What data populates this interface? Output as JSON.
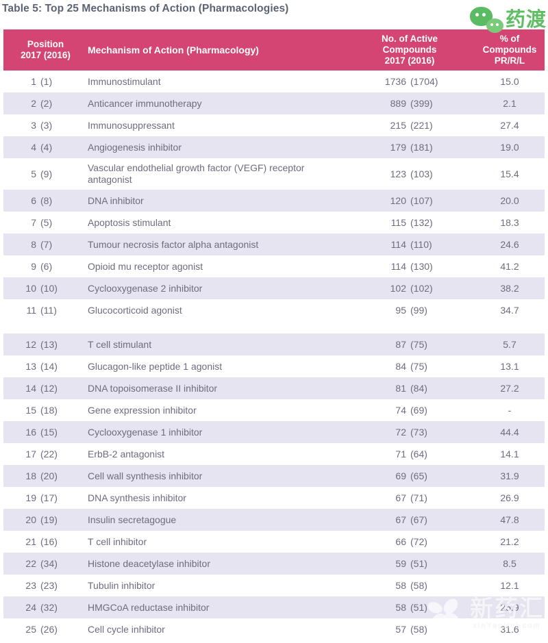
{
  "title": "Table 5: Top 25 Mechanisms of Action (Pharmacologies)",
  "logo": {
    "brand": "药渡",
    "icon": "wechat-icon"
  },
  "watermark": {
    "brand": "新药汇",
    "domain": "xinYaoHui.com",
    "icon": "clover-icon"
  },
  "colors": {
    "header_bg": "#d44573",
    "alt_row_bg": "#e7e4f1",
    "title_text": "#5c6374",
    "body_text": "#6f6b7e",
    "logo_green": "#5fbe63"
  },
  "table": {
    "columns": {
      "position": {
        "lines": [
          "Position",
          "2017 (2016)"
        ]
      },
      "mechanism": {
        "lines": [
          "Mechanism of Action (Pharmacology)"
        ]
      },
      "compounds": {
        "lines": [
          "No. of Active",
          "Compounds",
          "2017 (2016)"
        ]
      },
      "percent": {
        "lines": [
          "% of",
          "Compounds",
          "PR/R/L"
        ]
      }
    },
    "rows": [
      {
        "pos": "1",
        "pos_prev": "(1)",
        "mechanism": "Immunostimulant",
        "count": "1736",
        "count_prev": "(1704)",
        "pct": "15.0"
      },
      {
        "pos": "2",
        "pos_prev": "(2)",
        "mechanism": "Anticancer immunotherapy",
        "count": "889",
        "count_prev": "(399)",
        "pct": "2.1"
      },
      {
        "pos": "3",
        "pos_prev": "(3)",
        "mechanism": "Immunosuppressant",
        "count": "215",
        "count_prev": "(221)",
        "pct": "27.4"
      },
      {
        "pos": "4",
        "pos_prev": "(4)",
        "mechanism": "Angiogenesis inhibitor",
        "count": "179",
        "count_prev": "(181)",
        "pct": "19.0"
      },
      {
        "pos": "5",
        "pos_prev": "(9)",
        "mechanism": "Vascular endothelial growth factor (VEGF) receptor antagonist",
        "count": "123",
        "count_prev": "(103)",
        "pct": "15.4",
        "two_line": true
      },
      {
        "pos": "6",
        "pos_prev": "(8)",
        "mechanism": "DNA inhibitor",
        "count": "120",
        "count_prev": "(107)",
        "pct": "20.0"
      },
      {
        "pos": "7",
        "pos_prev": "(5)",
        "mechanism": "Apoptosis stimulant",
        "count": "115",
        "count_prev": "(132)",
        "pct": "18.3"
      },
      {
        "pos": "8",
        "pos_prev": "(7)",
        "mechanism": "Tumour necrosis factor alpha antagonist",
        "count": "114",
        "count_prev": "(110)",
        "pct": "24.6"
      },
      {
        "pos": "9",
        "pos_prev": "(6)",
        "mechanism": "Opioid mu receptor agonist",
        "count": "114",
        "count_prev": "(130)",
        "pct": "41.2"
      },
      {
        "pos": "10",
        "pos_prev": "(10)",
        "mechanism": "Cyclooxygenase 2 inhibitor",
        "count": "102",
        "count_prev": "(102)",
        "pct": "38.2"
      },
      {
        "pos": "11",
        "pos_prev": "(11)",
        "mechanism": "Glucocorticoid agonist",
        "count": "95",
        "count_prev": "(99)",
        "pct": "34.7",
        "gap_after": true
      },
      {
        "pos": "12",
        "pos_prev": "(13)",
        "mechanism": "T cell stimulant",
        "count": "87",
        "count_prev": "(75)",
        "pct": "5.7"
      },
      {
        "pos": "13",
        "pos_prev": "(14)",
        "mechanism": "Glucagon-like peptide 1 agonist",
        "count": "84",
        "count_prev": "(75)",
        "pct": "13.1"
      },
      {
        "pos": "14",
        "pos_prev": "(12)",
        "mechanism": "DNA topoisomerase II inhibitor",
        "count": "81",
        "count_prev": "(84)",
        "pct": "27.2"
      },
      {
        "pos": "15",
        "pos_prev": "(18)",
        "mechanism": "Gene expression inhibitor",
        "count": "74",
        "count_prev": "(69)",
        "pct": "-"
      },
      {
        "pos": "16",
        "pos_prev": "(15)",
        "mechanism": "Cyclooxygenase 1 inhibitor",
        "count": "72",
        "count_prev": "(73)",
        "pct": "44.4"
      },
      {
        "pos": "17",
        "pos_prev": "(22)",
        "mechanism": "ErbB-2 antagonist",
        "count": "71",
        "count_prev": "(64)",
        "pct": "14.1"
      },
      {
        "pos": "18",
        "pos_prev": "(20)",
        "mechanism": "Cell wall synthesis inhibitor",
        "count": "69",
        "count_prev": "(65)",
        "pct": "31.9"
      },
      {
        "pos": "19",
        "pos_prev": "(17)",
        "mechanism": "DNA synthesis inhibitor",
        "count": "67",
        "count_prev": "(71)",
        "pct": "26.9"
      },
      {
        "pos": "20",
        "pos_prev": "(19)",
        "mechanism": "Insulin secretagogue",
        "count": "67",
        "count_prev": "(67)",
        "pct": "47.8"
      },
      {
        "pos": "21",
        "pos_prev": "(16)",
        "mechanism": "T cell inhibitor",
        "count": "66",
        "count_prev": "(72)",
        "pct": "21.2"
      },
      {
        "pos": "22",
        "pos_prev": "(34)",
        "mechanism": "Histone deacetylase inhibitor",
        "count": "59",
        "count_prev": "(51)",
        "pct": "8.5"
      },
      {
        "pos": "23",
        "pos_prev": "(23)",
        "mechanism": "Tubulin inhibitor",
        "count": "58",
        "count_prev": "(58)",
        "pct": "12.1"
      },
      {
        "pos": "24",
        "pos_prev": "(32)",
        "mechanism": "HMGCoA reductase inhibitor",
        "count": "58",
        "count_prev": "(51)",
        "pct": "25.9"
      },
      {
        "pos": "25",
        "pos_prev": "(26)",
        "mechanism": "Cell cycle inhibitor",
        "count": "57",
        "count_prev": "(58)",
        "pct": "31.6"
      }
    ]
  }
}
